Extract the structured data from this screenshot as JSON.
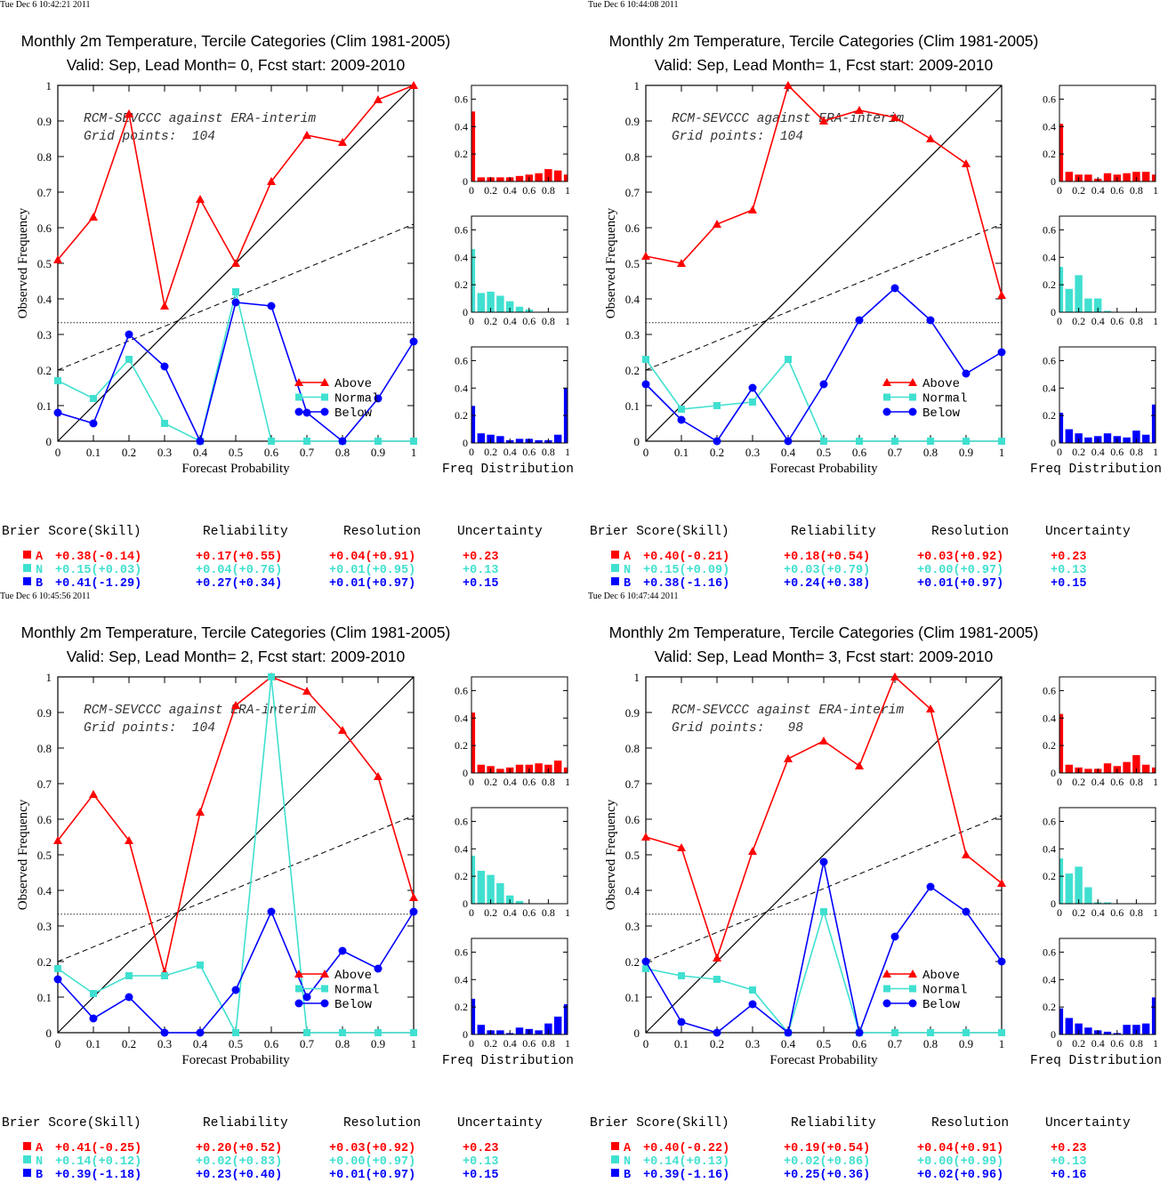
{
  "colors": {
    "above": "#ff0000",
    "normal": "#40e0d0",
    "below": "#0000ff",
    "axis": "#000000"
  },
  "legend": {
    "above": "Above",
    "normal": "Normal",
    "below": "Below"
  },
  "axis_labels": {
    "x": "Forecast Probability",
    "y": "Observed Frequency",
    "freq": "Freq Distribution"
  },
  "stat_headers": {
    "brier": "Brier Score(Skill)",
    "reliability": "Reliability",
    "resolution": "Resolution",
    "uncertainty": "Uncertainty"
  },
  "panels": [
    {
      "timestamp": "Tue Dec  6 10:42:21 2011",
      "title1": "Monthly 2m Temperature, Tercile Categories (Clim 1981-2005)",
      "title2": "Valid: Sep, Lead Month= 0, Fcst start: 2009-2010",
      "annot1": "RCM-SEVCCC against ERA-interim",
      "annot2": "Grid points:  104",
      "stats": [
        {
          "cat": "A",
          "brier": "+0.38(-0.14)",
          "rel": "+0.17(+0.55)",
          "res": "+0.04(+0.91)",
          "unc": "+0.23"
        },
        {
          "cat": "N",
          "brier": "+0.15(+0.03)",
          "rel": "+0.04(+0.76)",
          "res": "+0.01(+0.95)",
          "unc": "+0.13"
        },
        {
          "cat": "B",
          "brier": "+0.41(-1.29)",
          "rel": "+0.27(+0.34)",
          "res": "+0.01(+0.97)",
          "unc": "+0.15"
        }
      ]
    },
    {
      "timestamp": "Tue Dec  6 10:44:08 2011",
      "title1": "Monthly 2m Temperature, Tercile Categories (Clim 1981-2005)",
      "title2": "Valid: Sep, Lead Month= 1, Fcst start: 2009-2010",
      "annot1": "RCM-SEVCCC against ERA-interim",
      "annot2": "Grid points:  104",
      "stats": [
        {
          "cat": "A",
          "brier": "+0.40(-0.21)",
          "rel": "+0.18(+0.54)",
          "res": "+0.03(+0.92)",
          "unc": "+0.23"
        },
        {
          "cat": "N",
          "brier": "+0.15(+0.09)",
          "rel": "+0.03(+0.79)",
          "res": "+0.00(+0.97)",
          "unc": "+0.13"
        },
        {
          "cat": "B",
          "brier": "+0.38(-1.16)",
          "rel": "+0.24(+0.38)",
          "res": "+0.01(+0.97)",
          "unc": "+0.15"
        }
      ]
    },
    {
      "timestamp": "Tue Dec  6 10:45:56 2011",
      "title1": "Monthly 2m Temperature, Tercile Categories (Clim 1981-2005)",
      "title2": "Valid: Sep, Lead Month= 2, Fcst start: 2009-2010",
      "annot1": "RCM-SEVCCC against ERA-interim",
      "annot2": "Grid points:  104",
      "stats": [
        {
          "cat": "A",
          "brier": "+0.41(-0.25)",
          "rel": "+0.20(+0.52)",
          "res": "+0.03(+0.92)",
          "unc": "+0.23"
        },
        {
          "cat": "N",
          "brier": "+0.14(+0.12)",
          "rel": "+0.02(+0.83)",
          "res": "+0.00(+0.97)",
          "unc": "+0.13"
        },
        {
          "cat": "B",
          "brier": "+0.39(-1.18)",
          "rel": "+0.23(+0.40)",
          "res": "+0.01(+0.97)",
          "unc": "+0.15"
        }
      ]
    },
    {
      "timestamp": "Tue Dec  6 10:47:44 2011",
      "title1": "Monthly 2m Temperature, Tercile Categories (Clim 1981-2005)",
      "title2": "Valid: Sep, Lead Month= 3, Fcst start: 2009-2010",
      "annot1": "RCM-SEVCCC against ERA-interim",
      "annot2": "Grid points:   98",
      "stats": [
        {
          "cat": "A",
          "brier": "+0.40(-0.22)",
          "rel": "+0.19(+0.54)",
          "res": "+0.04(+0.91)",
          "unc": "+0.23"
        },
        {
          "cat": "N",
          "brier": "+0.14(+0.13)",
          "rel": "+0.02(+0.86)",
          "res": "+0.00(+0.99)",
          "unc": "+0.13"
        },
        {
          "cat": "B",
          "brier": "+0.39(-1.16)",
          "rel": "+0.25(+0.36)",
          "res": "+0.02(+0.96)",
          "unc": "+0.16"
        }
      ]
    }
  ],
  "chart_data": [
    {
      "type": "line",
      "xlabel": "Forecast Probability",
      "ylabel": "Observed Frequency",
      "xlim": [
        0,
        1
      ],
      "ylim": [
        0,
        1
      ],
      "x": [
        0,
        0.1,
        0.2,
        0.3,
        0.4,
        0.5,
        0.6,
        0.7,
        0.8,
        0.9,
        1
      ],
      "series": [
        {
          "name": "Above",
          "values": [
            0.51,
            0.63,
            0.92,
            0.38,
            0.68,
            0.5,
            0.73,
            0.86,
            0.84,
            0.96,
            1.0
          ]
        },
        {
          "name": "Normal",
          "values": [
            0.17,
            0.12,
            0.23,
            0.05,
            0,
            0.42,
            0,
            0,
            0,
            0,
            0
          ]
        },
        {
          "name": "Below",
          "values": [
            0.08,
            0.05,
            0.3,
            0.21,
            0,
            0.39,
            0.38,
            0.08,
            0,
            0.12,
            0.28
          ]
        }
      ],
      "reference": {
        "diagonal": [
          [
            0,
            0
          ],
          [
            1,
            1
          ]
        ],
        "dashed": [
          [
            0,
            0.2
          ],
          [
            1,
            0.61
          ]
        ],
        "climatology": 0.333
      },
      "freq_distribution": {
        "xlim": [
          0,
          1
        ],
        "ylim": [
          0,
          0.7
        ],
        "xlabel": "Freq Distribution",
        "above": [
          0.51,
          0.03,
          0.03,
          0.03,
          0.03,
          0.04,
          0.05,
          0.06,
          0.09,
          0.08,
          0.05
        ],
        "normal": [
          0.46,
          0.14,
          0.15,
          0.12,
          0.08,
          0.04,
          0.02,
          0,
          0,
          0,
          0
        ],
        "below": [
          0.27,
          0.07,
          0.06,
          0.05,
          0.02,
          0.03,
          0.03,
          0.02,
          0.02,
          0.06,
          0.4
        ]
      }
    },
    {
      "type": "line",
      "xlabel": "Forecast Probability",
      "ylabel": "Observed Frequency",
      "xlim": [
        0,
        1
      ],
      "ylim": [
        0,
        1
      ],
      "x": [
        0,
        0.1,
        0.2,
        0.3,
        0.4,
        0.5,
        0.6,
        0.7,
        0.8,
        0.9,
        1
      ],
      "series": [
        {
          "name": "Above",
          "values": [
            0.52,
            0.5,
            0.61,
            0.65,
            1.0,
            0.9,
            0.93,
            0.91,
            0.85,
            0.78,
            0.41
          ]
        },
        {
          "name": "Normal",
          "values": [
            0.23,
            0.09,
            0.1,
            0.11,
            0.23,
            0,
            0,
            0,
            0,
            0,
            0
          ]
        },
        {
          "name": "Below",
          "values": [
            0.16,
            0.06,
            0,
            0.15,
            0,
            0.16,
            0.34,
            0.43,
            0.34,
            0.19,
            0.25
          ]
        }
      ],
      "reference": {
        "diagonal": [
          [
            0,
            0
          ],
          [
            1,
            1
          ]
        ],
        "dashed": [
          [
            0,
            0.2
          ],
          [
            1,
            0.61
          ]
        ],
        "climatology": 0.333
      },
      "freq_distribution": {
        "xlim": [
          0,
          1
        ],
        "ylim": [
          0,
          0.7
        ],
        "xlabel": "Freq Distribution",
        "above": [
          0.42,
          0.07,
          0.05,
          0.05,
          0.02,
          0.06,
          0.05,
          0.06,
          0.07,
          0.07,
          0.05
        ],
        "normal": [
          0.33,
          0.17,
          0.27,
          0.1,
          0.1,
          0.01,
          0,
          0,
          0,
          0,
          0
        ],
        "below": [
          0.22,
          0.1,
          0.07,
          0.04,
          0.05,
          0.07,
          0.05,
          0.04,
          0.09,
          0.06,
          0.28
        ]
      }
    },
    {
      "type": "line",
      "xlabel": "Forecast Probability",
      "ylabel": "Observed Frequency",
      "xlim": [
        0,
        1
      ],
      "ylim": [
        0,
        1
      ],
      "x": [
        0,
        0.1,
        0.2,
        0.3,
        0.4,
        0.5,
        0.6,
        0.7,
        0.8,
        0.9,
        1
      ],
      "series": [
        {
          "name": "Above",
          "values": [
            0.54,
            0.67,
            0.54,
            0.17,
            0.62,
            0.92,
            1.0,
            0.96,
            0.85,
            0.72,
            0.38
          ]
        },
        {
          "name": "Normal",
          "values": [
            0.18,
            0.11,
            0.16,
            0.16,
            0.19,
            0,
            1.0,
            0,
            0,
            0,
            0
          ]
        },
        {
          "name": "Below",
          "values": [
            0.15,
            0.04,
            0.1,
            0,
            0,
            0.12,
            0.34,
            0.1,
            0.23,
            0.18,
            0.34
          ]
        }
      ],
      "reference": {
        "diagonal": [
          [
            0,
            0
          ],
          [
            1,
            1
          ]
        ],
        "dashed": [
          [
            0,
            0.2
          ],
          [
            1,
            0.61
          ]
        ],
        "climatology": 0.333
      },
      "freq_distribution": {
        "xlim": [
          0,
          1
        ],
        "ylim": [
          0,
          0.7
        ],
        "xlabel": "Freq Distribution",
        "above": [
          0.44,
          0.06,
          0.05,
          0.03,
          0.04,
          0.06,
          0.06,
          0.07,
          0.06,
          0.09,
          0.04
        ],
        "normal": [
          0.35,
          0.24,
          0.21,
          0.15,
          0.06,
          0.02,
          0,
          0,
          0,
          0,
          0
        ],
        "below": [
          0.26,
          0.07,
          0.03,
          0.03,
          0.01,
          0.05,
          0.04,
          0.03,
          0.08,
          0.13,
          0.22
        ]
      }
    },
    {
      "type": "line",
      "xlabel": "Forecast Probability",
      "ylabel": "Observed Frequency",
      "xlim": [
        0,
        1
      ],
      "ylim": [
        0,
        1
      ],
      "x": [
        0,
        0.1,
        0.2,
        0.3,
        0.4,
        0.5,
        0.6,
        0.7,
        0.8,
        0.9,
        1
      ],
      "series": [
        {
          "name": "Above",
          "values": [
            0.55,
            0.52,
            0.21,
            0.51,
            0.77,
            0.82,
            0.75,
            1.0,
            0.91,
            0.5,
            0.42
          ]
        },
        {
          "name": "Normal",
          "values": [
            0.18,
            0.16,
            0.15,
            0.12,
            0,
            0.34,
            0,
            0,
            0,
            0,
            0
          ]
        },
        {
          "name": "Below",
          "values": [
            0.2,
            0.03,
            0,
            0.08,
            0,
            0.48,
            0,
            0.27,
            0.41,
            0.34,
            0.2
          ]
        }
      ],
      "reference": {
        "diagonal": [
          [
            0,
            0
          ],
          [
            1,
            1
          ]
        ],
        "dashed": [
          [
            0,
            0.2
          ],
          [
            1,
            0.61
          ]
        ],
        "climatology": 0.333
      },
      "freq_distribution": {
        "xlim": [
          0,
          1
        ],
        "ylim": [
          0,
          0.7
        ],
        "xlabel": "Freq Distribution",
        "above": [
          0.43,
          0.06,
          0.04,
          0.03,
          0.03,
          0.07,
          0.05,
          0.08,
          0.13,
          0.06,
          0.04
        ],
        "normal": [
          0.33,
          0.22,
          0.27,
          0.12,
          0.01,
          0.01,
          0,
          0,
          0,
          0,
          0
        ],
        "below": [
          0.19,
          0.12,
          0.08,
          0.05,
          0.03,
          0.02,
          0.01,
          0.07,
          0.07,
          0.08,
          0.27
        ]
      }
    }
  ]
}
